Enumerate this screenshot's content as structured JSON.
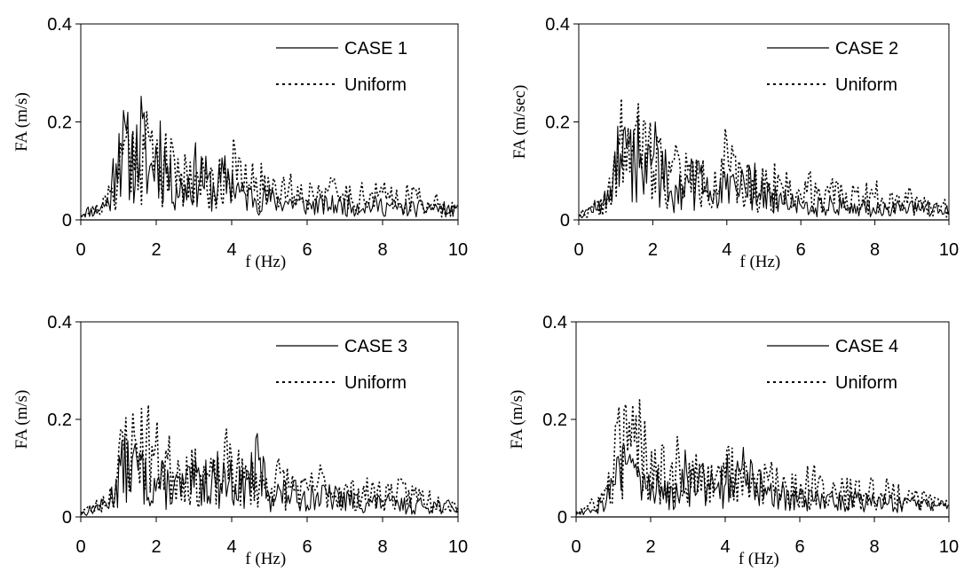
{
  "chart_data": [
    {
      "type": "line",
      "xlabel": "f (Hz)",
      "ylabel": "FA (m/s)",
      "xlim": [
        0,
        10
      ],
      "ylim": [
        0,
        0.4
      ],
      "xticks": [
        "0",
        "2",
        "4",
        "6",
        "8",
        "10"
      ],
      "yticks": [
        "0",
        "0.2",
        "0.4"
      ],
      "grid": false,
      "legend_position": "top-right",
      "series": [
        {
          "name": "CASE 1",
          "style": "solid",
          "seed": 11,
          "x": [
            0,
            0.2,
            0.4,
            0.6,
            0.8,
            0.95,
            1.1,
            1.3,
            1.45,
            1.6,
            1.8,
            2.1,
            2.4,
            2.7,
            3.1,
            3.5,
            3.9,
            4.3,
            4.7,
            5.0,
            5.5,
            6.0,
            6.5,
            7.0,
            7.5,
            8.0,
            8.5,
            9.0,
            9.5,
            10
          ],
          "y": [
            0.02,
            0.03,
            0.03,
            0.05,
            0.07,
            0.28,
            0.24,
            0.22,
            0.2,
            0.28,
            0.15,
            0.25,
            0.12,
            0.1,
            0.17,
            0.1,
            0.15,
            0.08,
            0.08,
            0.07,
            0.06,
            0.05,
            0.05,
            0.05,
            0.05,
            0.05,
            0.04,
            0.04,
            0.04,
            0.03
          ]
        },
        {
          "name": "Uniform",
          "style": "dotted",
          "seed": 21,
          "x": [
            0,
            0.3,
            0.6,
            0.9,
            1.15,
            1.3,
            1.5,
            1.7,
            2.0,
            2.2,
            2.5,
            2.7,
            3.0,
            3.3,
            3.6,
            3.95,
            4.3,
            4.6,
            5.0,
            5.3,
            5.6,
            6.0,
            6.3,
            6.6,
            7.0,
            7.5,
            8.0,
            8.5,
            9.0,
            9.5,
            10
          ],
          "y": [
            0.02,
            0.03,
            0.05,
            0.1,
            0.25,
            0.24,
            0.24,
            0.26,
            0.2,
            0.19,
            0.16,
            0.17,
            0.14,
            0.13,
            0.12,
            0.2,
            0.12,
            0.12,
            0.11,
            0.13,
            0.1,
            0.08,
            0.12,
            0.09,
            0.08,
            0.08,
            0.08,
            0.08,
            0.07,
            0.05,
            0.04
          ]
        }
      ],
      "legend": [
        "CASE 1",
        "Uniform"
      ]
    },
    {
      "type": "line",
      "xlabel": "f (Hz)",
      "ylabel": "FA (m/sec)",
      "xlim": [
        0,
        10
      ],
      "ylim": [
        0,
        0.4
      ],
      "xticks": [
        "0",
        "2",
        "4",
        "6",
        "8",
        "10"
      ],
      "yticks": [
        "0",
        "0.2",
        "0.4"
      ],
      "grid": false,
      "legend_position": "top-right",
      "series": [
        {
          "name": "CASE 2",
          "style": "solid",
          "seed": 12,
          "x": [
            0,
            0.2,
            0.4,
            0.6,
            0.8,
            1.0,
            1.2,
            1.4,
            1.6,
            1.8,
            2.1,
            2.4,
            2.7,
            3.1,
            3.5,
            3.9,
            4.3,
            4.7,
            5.0,
            5.5,
            6.0,
            6.5,
            7.0,
            7.5,
            8.0,
            8.5,
            9.0,
            9.5,
            10
          ],
          "y": [
            0.02,
            0.03,
            0.04,
            0.05,
            0.07,
            0.23,
            0.2,
            0.2,
            0.26,
            0.15,
            0.24,
            0.13,
            0.1,
            0.13,
            0.11,
            0.1,
            0.1,
            0.14,
            0.08,
            0.06,
            0.05,
            0.05,
            0.05,
            0.04,
            0.04,
            0.04,
            0.04,
            0.04,
            0.03
          ]
        },
        {
          "name": "Uniform",
          "style": "dotted",
          "seed": 22,
          "x": [
            0,
            0.3,
            0.6,
            0.9,
            1.15,
            1.3,
            1.5,
            1.7,
            2.0,
            2.2,
            2.5,
            2.7,
            3.0,
            3.3,
            3.6,
            3.95,
            4.3,
            4.6,
            5.0,
            5.3,
            5.6,
            6.0,
            6.3,
            6.6,
            7.0,
            7.5,
            8.0,
            8.5,
            9.0,
            9.5,
            10
          ],
          "y": [
            0.02,
            0.03,
            0.05,
            0.1,
            0.25,
            0.24,
            0.24,
            0.26,
            0.2,
            0.19,
            0.16,
            0.17,
            0.14,
            0.13,
            0.12,
            0.2,
            0.12,
            0.12,
            0.11,
            0.13,
            0.1,
            0.08,
            0.12,
            0.09,
            0.08,
            0.08,
            0.08,
            0.08,
            0.07,
            0.05,
            0.04
          ]
        }
      ],
      "legend": [
        "CASE 2",
        "Uniform"
      ]
    },
    {
      "type": "line",
      "xlabel": "f (Hz)",
      "ylabel": "FA (m/s)",
      "xlim": [
        0,
        10
      ],
      "ylim": [
        0,
        0.4
      ],
      "xticks": [
        "0",
        "2",
        "4",
        "6",
        "8",
        "10"
      ],
      "yticks": [
        "0",
        "0.2",
        "0.4"
      ],
      "grid": false,
      "legend_position": "top-right",
      "series": [
        {
          "name": "CASE 3",
          "style": "solid",
          "seed": 13,
          "x": [
            0,
            0.2,
            0.4,
            0.6,
            0.8,
            1.0,
            1.2,
            1.4,
            1.6,
            1.8,
            2.1,
            2.4,
            2.7,
            3.1,
            3.5,
            3.9,
            4.3,
            4.7,
            5.0,
            5.5,
            6.0,
            6.5,
            7.0,
            7.5,
            8.0,
            8.5,
            9.0,
            9.5,
            10
          ],
          "y": [
            0.01,
            0.02,
            0.03,
            0.04,
            0.06,
            0.15,
            0.17,
            0.17,
            0.16,
            0.1,
            0.12,
            0.1,
            0.1,
            0.12,
            0.14,
            0.13,
            0.1,
            0.18,
            0.08,
            0.08,
            0.07,
            0.07,
            0.06,
            0.05,
            0.05,
            0.04,
            0.04,
            0.04,
            0.03
          ]
        },
        {
          "name": "Uniform",
          "style": "dotted",
          "seed": 23,
          "x": [
            0,
            0.3,
            0.6,
            0.9,
            1.15,
            1.3,
            1.5,
            1.7,
            2.0,
            2.2,
            2.5,
            2.7,
            3.0,
            3.3,
            3.6,
            3.95,
            4.3,
            4.6,
            5.0,
            5.3,
            5.6,
            6.0,
            6.3,
            6.6,
            7.0,
            7.5,
            8.0,
            8.5,
            9.0,
            9.5,
            10
          ],
          "y": [
            0.02,
            0.03,
            0.05,
            0.1,
            0.25,
            0.24,
            0.24,
            0.26,
            0.2,
            0.19,
            0.16,
            0.17,
            0.14,
            0.13,
            0.12,
            0.2,
            0.12,
            0.12,
            0.11,
            0.13,
            0.1,
            0.08,
            0.12,
            0.09,
            0.08,
            0.08,
            0.08,
            0.08,
            0.07,
            0.05,
            0.04
          ]
        }
      ],
      "legend": [
        "CASE 3",
        "Uniform"
      ]
    },
    {
      "type": "line",
      "xlabel": "f (Hz)",
      "ylabel": "FA (m/s)",
      "xlim": [
        0,
        10
      ],
      "ylim": [
        0,
        0.4
      ],
      "xticks": [
        "0",
        "2",
        "4",
        "6",
        "8",
        "10"
      ],
      "yticks": [
        "0",
        "0.2",
        "0.4"
      ],
      "grid": false,
      "legend_position": "top-right",
      "series": [
        {
          "name": "CASE 4",
          "style": "solid",
          "seed": 14,
          "x": [
            0,
            0.2,
            0.4,
            0.6,
            0.8,
            1.0,
            1.2,
            1.4,
            1.6,
            1.8,
            2.1,
            2.4,
            2.7,
            3.0,
            3.3,
            3.6,
            3.9,
            4.2,
            4.5,
            4.8,
            5.1,
            5.5,
            6.0,
            6.5,
            7.0,
            7.5,
            8.0,
            8.5,
            9.0,
            9.5,
            10
          ],
          "y": [
            0.01,
            0.02,
            0.03,
            0.04,
            0.06,
            0.13,
            0.16,
            0.17,
            0.17,
            0.1,
            0.1,
            0.1,
            0.11,
            0.17,
            0.12,
            0.11,
            0.13,
            0.14,
            0.15,
            0.11,
            0.08,
            0.07,
            0.06,
            0.06,
            0.06,
            0.06,
            0.05,
            0.05,
            0.04,
            0.04,
            0.03
          ]
        },
        {
          "name": "Uniform",
          "style": "dotted",
          "seed": 24,
          "x": [
            0,
            0.3,
            0.6,
            0.9,
            1.15,
            1.3,
            1.5,
            1.7,
            2.0,
            2.2,
            2.5,
            2.7,
            3.0,
            3.3,
            3.6,
            3.95,
            4.3,
            4.6,
            5.0,
            5.3,
            5.6,
            6.0,
            6.3,
            6.6,
            7.0,
            7.5,
            8.0,
            8.5,
            9.0,
            9.5,
            10
          ],
          "y": [
            0.02,
            0.03,
            0.05,
            0.1,
            0.25,
            0.24,
            0.24,
            0.26,
            0.2,
            0.19,
            0.16,
            0.17,
            0.14,
            0.13,
            0.12,
            0.2,
            0.12,
            0.12,
            0.11,
            0.13,
            0.1,
            0.08,
            0.12,
            0.09,
            0.08,
            0.08,
            0.08,
            0.08,
            0.07,
            0.05,
            0.04
          ]
        }
      ],
      "legend": [
        "CASE 4",
        "Uniform"
      ]
    }
  ]
}
